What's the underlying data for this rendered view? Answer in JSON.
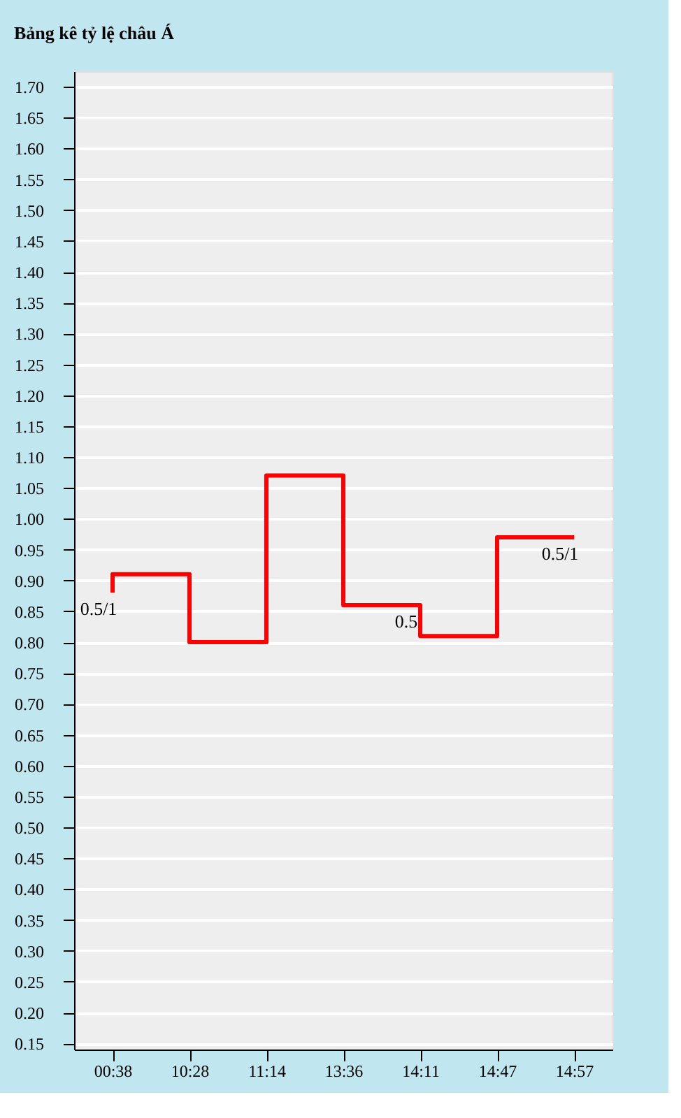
{
  "chart_data": {
    "type": "step",
    "title": "Bảng kê tỷ lệ châu Á",
    "categories": [
      "00:38",
      "10:28",
      "11:14",
      "13:36",
      "14:11",
      "14:47",
      "14:57"
    ],
    "series": [
      {
        "color": "#ff0000",
        "values": [
          0.88,
          0.91,
          0.8,
          1.07,
          0.86,
          0.81,
          0.97
        ]
      }
    ],
    "ylim": [
      0.14,
      1.725
    ],
    "yticks": [
      0.15,
      {
        "value": 0.2,
        "label": "0.20"
      },
      0.25,
      {
        "value": 0.3,
        "label": "0.30"
      },
      0.35,
      {
        "value": 0.4,
        "label": "0.40"
      },
      0.45,
      {
        "value": 0.5,
        "label": "0.50"
      },
      0.55,
      {
        "value": 0.6,
        "label": "0.60"
      },
      0.65,
      {
        "value": 0.7,
        "label": "0.70"
      },
      0.75,
      {
        "value": 0.8,
        "label": "0.80"
      },
      0.85,
      {
        "value": 0.9,
        "label": "0.90"
      },
      0.95,
      {
        "value": 1.0,
        "label": "1.00"
      },
      1.05,
      {
        "value": 1.1,
        "label": "1.10"
      },
      1.15,
      {
        "value": 1.2,
        "label": "1.20"
      },
      1.25,
      {
        "value": 1.3,
        "label": "1.30"
      },
      1.35,
      {
        "value": 1.4,
        "label": "1.40"
      },
      1.45,
      {
        "value": 1.5,
        "label": "1.50"
      },
      1.55,
      {
        "value": 1.6,
        "label": "1.60"
      },
      1.65,
      {
        "value": 1.7,
        "label": "1.70"
      }
    ],
    "grid": "y",
    "marker": "none",
    "line_style": "solid",
    "annotations": [
      {
        "text": "0.5/1",
        "x": "00:38",
        "y": 0.88
      },
      {
        "text": "0.5",
        "x": "14:11",
        "y": 0.86
      },
      {
        "text": "0.5/1",
        "x": "14:57",
        "y": 0.97
      }
    ]
  }
}
